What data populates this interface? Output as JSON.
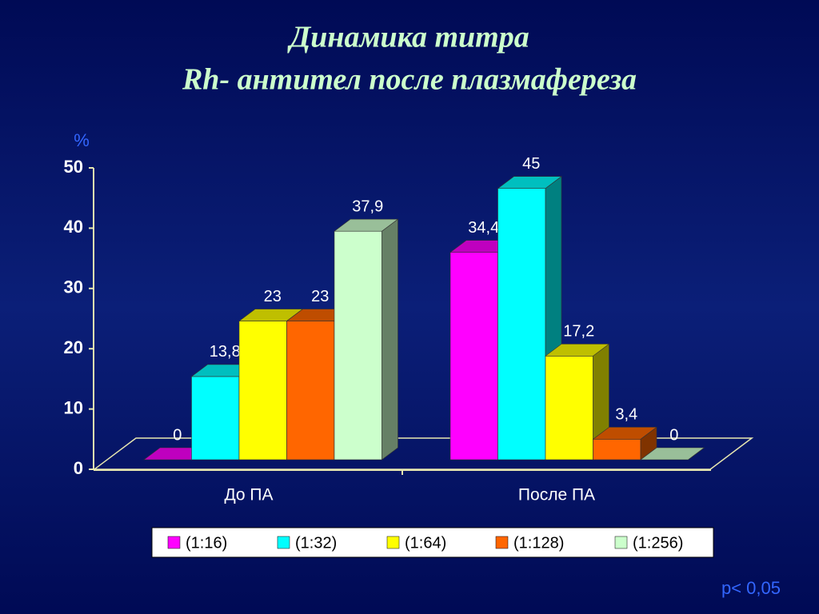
{
  "chart_data": {
    "type": "bar3d",
    "title": [
      "Динамика  титра",
      "Rh- антител после плазмафереза"
    ],
    "y_label": "%",
    "annotation": "p< 0,05",
    "categories": [
      "До ПА",
      "После ПА"
    ],
    "series": [
      {
        "name": "(1:16)",
        "color": "#ff00ff",
        "values": [
          0,
          34.4
        ],
        "value_labels": [
          "0",
          "34,4"
        ]
      },
      {
        "name": "(1:32)",
        "color": "#00ffff",
        "values": [
          13.8,
          45
        ],
        "value_labels": [
          "13,8",
          "45"
        ]
      },
      {
        "name": "(1:64)",
        "color": "#ffff00",
        "values": [
          23,
          17.2
        ],
        "value_labels": [
          "23",
          "17,2"
        ]
      },
      {
        "name": "(1:128)",
        "color": "#ff6600",
        "values": [
          23,
          3.4
        ],
        "value_labels": [
          "23",
          "3,4"
        ]
      },
      {
        "name": "(1:256)",
        "color": "#ccffcc",
        "values": [
          37.9,
          0
        ],
        "value_labels": [
          "37,9",
          "0"
        ]
      }
    ],
    "ylim": [
      0,
      50
    ],
    "yticks": [
      0,
      10,
      20,
      30,
      40,
      50
    ]
  }
}
